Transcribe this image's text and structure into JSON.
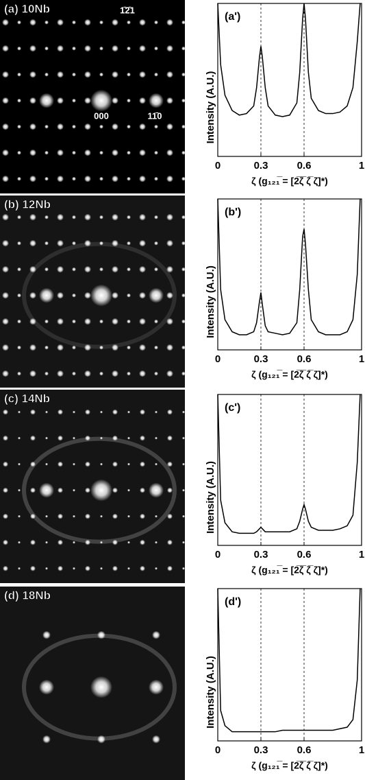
{
  "images": [
    {
      "label": "(a) 10Nb",
      "annotations": [
        "1̄2̄1",
        "000",
        "11̄0"
      ]
    },
    {
      "label": "(b) 12Nb",
      "annotations": []
    },
    {
      "label": "(c) 14Nb",
      "annotations": []
    },
    {
      "label": "(d) 18Nb",
      "annotations": []
    }
  ],
  "chart_data": [
    {
      "type": "line",
      "title": "(a')",
      "x_label": "ζ (g₁₂₁̅ = [2̅ζ̅ ζ̅ ζ]*)",
      "y_label": "Intensity (A.U.)",
      "xlim": [
        0,
        1
      ],
      "xticks": [
        0,
        0.3,
        0.6,
        1
      ],
      "ylim": [
        0,
        100
      ],
      "reference_lines": [
        0.3,
        0.6
      ],
      "color": "#000000",
      "x": [
        0.0,
        0.02,
        0.05,
        0.1,
        0.15,
        0.2,
        0.25,
        0.27,
        0.29,
        0.3,
        0.31,
        0.33,
        0.35,
        0.4,
        0.45,
        0.5,
        0.55,
        0.57,
        0.59,
        0.6,
        0.61,
        0.63,
        0.65,
        0.7,
        0.75,
        0.8,
        0.85,
        0.9,
        0.94,
        0.97,
        0.99
      ],
      "values": [
        100,
        60,
        40,
        30,
        27,
        28,
        33,
        45,
        65,
        72,
        65,
        45,
        33,
        27,
        26,
        27,
        35,
        55,
        90,
        100,
        90,
        55,
        38,
        30,
        28,
        28,
        29,
        33,
        45,
        75,
        100
      ]
    },
    {
      "type": "line",
      "title": "(b')",
      "x_label": "ζ (g₁₂₁̅ = [2̅ζ̅ ζ̅ ζ]*)",
      "y_label": "Intensity (A.U.)",
      "xlim": [
        0,
        1
      ],
      "xticks": [
        0,
        0.3,
        0.6,
        1
      ],
      "ylim": [
        0,
        100
      ],
      "reference_lines": [
        0.3,
        0.6
      ],
      "color": "#000000",
      "x": [
        0.0,
        0.02,
        0.05,
        0.1,
        0.15,
        0.2,
        0.25,
        0.27,
        0.29,
        0.3,
        0.31,
        0.33,
        0.35,
        0.4,
        0.45,
        0.5,
        0.55,
        0.57,
        0.59,
        0.6,
        0.61,
        0.63,
        0.65,
        0.7,
        0.75,
        0.8,
        0.85,
        0.9,
        0.94,
        0.97,
        0.99
      ],
      "values": [
        100,
        40,
        20,
        12,
        10,
        10,
        12,
        18,
        32,
        38,
        30,
        16,
        12,
        11,
        10,
        11,
        18,
        40,
        75,
        80,
        70,
        40,
        20,
        12,
        10,
        10,
        10,
        12,
        20,
        50,
        100
      ]
    },
    {
      "type": "line",
      "title": "(c')",
      "x_label": "ζ (g₁₂₁̅ = [2̅ζ̅ ζ̅ ζ]*)",
      "y_label": "Intensity (A.U.)",
      "xlim": [
        0,
        1
      ],
      "xticks": [
        0,
        0.3,
        0.6,
        1
      ],
      "ylim": [
        0,
        100
      ],
      "reference_lines": [
        0.3,
        0.6
      ],
      "color": "#000000",
      "x": [
        0.0,
        0.02,
        0.05,
        0.1,
        0.15,
        0.2,
        0.25,
        0.27,
        0.29,
        0.3,
        0.31,
        0.33,
        0.35,
        0.4,
        0.45,
        0.5,
        0.55,
        0.57,
        0.59,
        0.6,
        0.61,
        0.63,
        0.65,
        0.7,
        0.75,
        0.8,
        0.85,
        0.9,
        0.94,
        0.97,
        0.99
      ],
      "values": [
        100,
        30,
        15,
        9,
        8,
        8,
        8,
        9,
        11,
        12,
        11,
        9,
        9,
        9,
        9,
        9,
        11,
        16,
        24,
        27,
        24,
        16,
        12,
        10,
        10,
        10,
        11,
        13,
        20,
        55,
        100
      ]
    },
    {
      "type": "line",
      "title": "(d')",
      "x_label": "ζ (g₁₂₁̅ = [2̅ζ̅ ζ̅ ζ]*)",
      "y_label": "Intensity (A.U.)",
      "xlim": [
        0,
        1
      ],
      "xticks": [
        0,
        0.3,
        0.6,
        1
      ],
      "ylim": [
        0,
        100
      ],
      "reference_lines": [
        0.3,
        0.6
      ],
      "color": "#000000",
      "x": [
        0.0,
        0.02,
        0.05,
        0.1,
        0.15,
        0.2,
        0.25,
        0.27,
        0.29,
        0.3,
        0.31,
        0.33,
        0.35,
        0.4,
        0.45,
        0.5,
        0.55,
        0.57,
        0.59,
        0.6,
        0.61,
        0.63,
        0.65,
        0.7,
        0.75,
        0.8,
        0.85,
        0.9,
        0.94,
        0.97,
        0.99
      ],
      "values": [
        100,
        20,
        10,
        6,
        6,
        6,
        6,
        6,
        6,
        6,
        6,
        6,
        6,
        6,
        7,
        7,
        7,
        7,
        7,
        7,
        7,
        7,
        7,
        7,
        7,
        7,
        8,
        9,
        14,
        40,
        100
      ]
    }
  ]
}
